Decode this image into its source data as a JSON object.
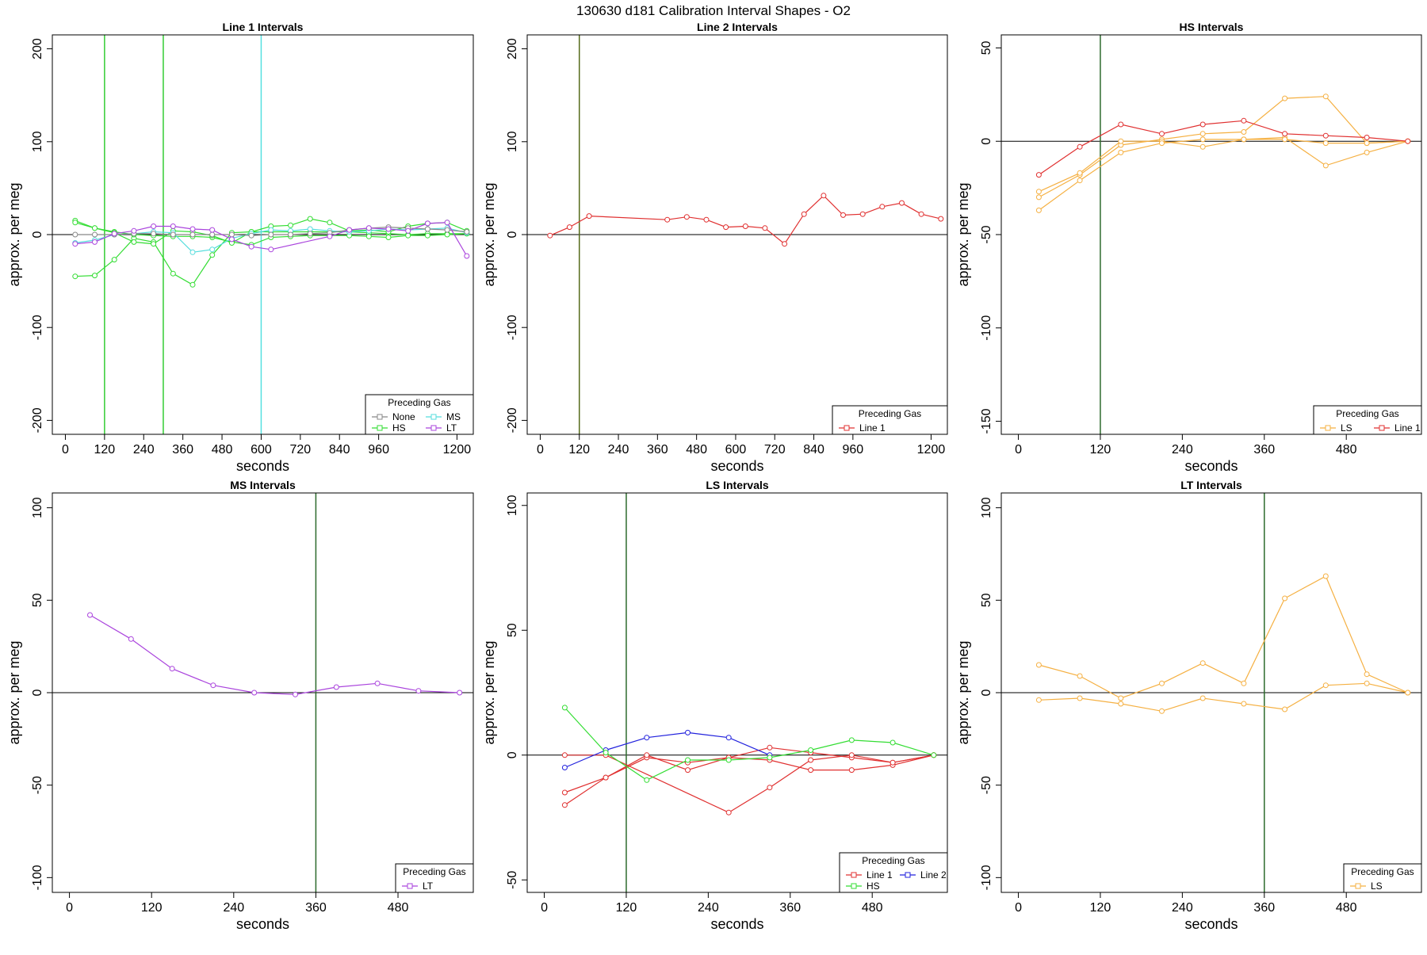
{
  "main_title": "130630   d181   Calibration Interval Shapes - O2",
  "legend_title": "Preceding Gas",
  "colors": {
    "None": "#888888",
    "HS": "#33dd33",
    "MS": "#55dddd",
    "LT": "#aa44dd",
    "Line 1": "#e03030",
    "Line 2": "#2222dd",
    "LS": "#f5b042",
    "vline_green": "#33cc33",
    "vline_dark": "#2d6a2d",
    "vline_cyan": "#55e0e0",
    "vline_olive": "#556b1a"
  },
  "chart_data": [
    {
      "type": "line",
      "title": "Line 1 Intervals",
      "xlabel": "seconds",
      "ylabel": "approx. per meg",
      "xlim": [
        -40,
        1250
      ],
      "ylim": [
        -215,
        215
      ],
      "xticks": [
        0,
        120,
        240,
        360,
        480,
        600,
        720,
        840,
        960,
        1200
      ],
      "yticks": [
        -200,
        -100,
        0,
        100,
        200
      ],
      "vlines": [
        {
          "x": 120,
          "color": "vline_green"
        },
        {
          "x": 300,
          "color": "vline_green"
        },
        {
          "x": 600,
          "color": "vline_cyan"
        }
      ],
      "legend": [
        "None",
        "MS",
        "HS",
        "LT"
      ],
      "legend_cols": 2,
      "series": [
        {
          "name": "HS",
          "x": [
            30,
            90,
            150,
            210,
            270,
            330,
            390,
            450,
            510,
            570,
            630,
            690,
            750,
            810,
            870,
            930,
            990,
            1050,
            1110,
            1170,
            1230
          ],
          "y": [
            -45,
            -44,
            -27,
            -4,
            -8,
            -42,
            -54,
            -22,
            2,
            3,
            3,
            3,
            3,
            3,
            3,
            2,
            1,
            0,
            1,
            1,
            1
          ]
        },
        {
          "name": "HS",
          "x": [
            30,
            90,
            150,
            210,
            270,
            330,
            390,
            450,
            510,
            570,
            630,
            690,
            750,
            810,
            870,
            930,
            990,
            1050,
            1110,
            1170,
            1230
          ],
          "y": [
            15,
            7,
            3,
            0,
            -1,
            -2,
            -2,
            -3,
            -8,
            -11,
            -3,
            -2,
            -1,
            -1,
            -1,
            -2,
            -3,
            -1,
            -1,
            0,
            1
          ]
        },
        {
          "name": "HS",
          "x": [
            30,
            90,
            150,
            210,
            270,
            330,
            390,
            450,
            510,
            570,
            630,
            690,
            750,
            810,
            870,
            930,
            990,
            1050,
            1110,
            1170,
            1230
          ],
          "y": [
            13,
            7,
            2,
            -8,
            -10,
            4,
            3,
            -1,
            -9,
            3,
            9,
            10,
            17,
            13,
            4,
            5,
            3,
            9,
            12,
            13,
            4
          ]
        },
        {
          "name": "MS",
          "x": [
            30,
            90,
            150,
            210,
            270,
            330,
            390,
            450,
            510,
            570,
            630,
            690,
            750,
            810,
            870,
            930,
            990,
            1050,
            1110,
            1170,
            1230
          ],
          "y": [
            -9,
            -6,
            0,
            1,
            3,
            2,
            -19,
            -16,
            -4,
            1,
            5,
            4,
            6,
            4,
            3,
            4,
            6,
            5,
            6,
            7,
            2
          ]
        },
        {
          "name": "None",
          "x": [
            30,
            90,
            150,
            210,
            270,
            330,
            390,
            450,
            510,
            570,
            630,
            690,
            750,
            810,
            870,
            930,
            990,
            1050,
            1110,
            1170,
            1230
          ],
          "y": [
            0,
            0,
            0,
            1,
            1,
            0,
            0,
            0,
            0,
            -1,
            0,
            0,
            1,
            2,
            5,
            7,
            8,
            7,
            6,
            5,
            3
          ]
        },
        {
          "name": "LT",
          "x": [
            30,
            90,
            150,
            210,
            270,
            330,
            390,
            450,
            510,
            570,
            630,
            810,
            870,
            930,
            990,
            1050,
            1110,
            1170,
            1230
          ],
          "y": [
            -10,
            -8,
            1,
            4,
            9,
            9,
            6,
            5,
            -5,
            -13,
            -16,
            -2,
            5,
            7,
            6,
            4,
            12,
            13,
            -23
          ]
        }
      ]
    },
    {
      "type": "line",
      "title": "Line 2 Intervals",
      "xlabel": "seconds",
      "ylabel": "approx. per meg",
      "xlim": [
        -40,
        1250
      ],
      "ylim": [
        -215,
        215
      ],
      "xticks": [
        0,
        120,
        240,
        360,
        480,
        600,
        720,
        840,
        960,
        1200
      ],
      "yticks": [
        -200,
        -100,
        0,
        100,
        200
      ],
      "vlines": [
        {
          "x": 120,
          "color": "vline_olive"
        }
      ],
      "legend": [
        "Line 1"
      ],
      "legend_cols": 1,
      "series": [
        {
          "name": "Line 1",
          "x": [
            30,
            90,
            150,
            390,
            450,
            510,
            570,
            630,
            690,
            750,
            810,
            870,
            930,
            990,
            1050,
            1110,
            1170,
            1230
          ],
          "y": [
            -1,
            8,
            20,
            16,
            19,
            16,
            8,
            9,
            7,
            -10,
            22,
            42,
            21,
            22,
            30,
            34,
            22,
            17
          ]
        }
      ]
    },
    {
      "type": "line",
      "title": "HS Intervals",
      "xlabel": "seconds",
      "ylabel": "approx. per meg",
      "xlim": [
        -25,
        590
      ],
      "ylim": [
        -157,
        57
      ],
      "xticks": [
        0,
        120,
        240,
        360,
        480
      ],
      "yticks": [
        -150,
        -100,
        -50,
        0,
        50
      ],
      "vlines": [
        {
          "x": 120,
          "color": "vline_dark"
        }
      ],
      "legend": [
        "LS",
        "Line 1"
      ],
      "legend_cols": 2,
      "series": [
        {
          "name": "LS",
          "x": [
            30,
            90,
            150,
            210,
            270,
            330,
            390,
            450,
            510,
            570
          ],
          "y": [
            -30,
            -18,
            -2,
            1,
            4,
            5,
            23,
            24,
            -1,
            0
          ]
        },
        {
          "name": "LS",
          "x": [
            30,
            90,
            150,
            210,
            270,
            330,
            390,
            450,
            510,
            570
          ],
          "y": [
            -27,
            -17,
            0,
            0,
            -3,
            1,
            2,
            -13,
            -6,
            0
          ]
        },
        {
          "name": "LS",
          "x": [
            30,
            90,
            150,
            210,
            270,
            330,
            390,
            450,
            510,
            570
          ],
          "y": [
            -37,
            -21,
            -6,
            -1,
            1,
            1,
            1,
            -1,
            -1,
            0
          ]
        },
        {
          "name": "Line 1",
          "x": [
            30,
            90,
            150,
            210,
            270,
            330,
            390,
            450,
            510,
            570
          ],
          "y": [
            -18,
            -3,
            9,
            4,
            9,
            11,
            4,
            3,
            2,
            0
          ]
        }
      ]
    },
    {
      "type": "line",
      "title": "MS Intervals",
      "xlabel": "seconds",
      "ylabel": "approx. per meg",
      "xlim": [
        -25,
        590
      ],
      "ylim": [
        -108,
        108
      ],
      "xticks": [
        0,
        120,
        240,
        360,
        480
      ],
      "yticks": [
        -100,
        -50,
        0,
        50,
        100
      ],
      "vlines": [
        {
          "x": 360,
          "color": "vline_dark"
        }
      ],
      "legend": [
        "LT"
      ],
      "legend_cols": 1,
      "series": [
        {
          "name": "LT",
          "x": [
            30,
            90,
            150,
            210,
            270,
            330,
            390,
            450,
            510,
            570
          ],
          "y": [
            42,
            29,
            13,
            4,
            0,
            -1,
            3,
            5,
            1,
            0
          ]
        }
      ]
    },
    {
      "type": "line",
      "title": "LS Intervals",
      "xlabel": "seconds",
      "ylabel": "approx. per meg",
      "xlim": [
        -25,
        590
      ],
      "ylim": [
        -55,
        105
      ],
      "xticks": [
        0,
        120,
        240,
        360,
        480
      ],
      "yticks": [
        -50,
        0,
        50,
        100
      ],
      "vlines": [
        {
          "x": 120,
          "color": "vline_dark"
        }
      ],
      "legend": [
        "Line 1",
        "Line 2",
        "HS"
      ],
      "legend_cols": 2,
      "series": [
        {
          "name": "Line 1",
          "x": [
            30,
            90,
            150,
            210,
            270,
            330,
            390,
            450,
            510,
            570
          ],
          "y": [
            -15,
            -9,
            -1,
            -3,
            -1,
            3,
            1,
            -1,
            -3,
            0
          ]
        },
        {
          "name": "Line 1",
          "x": [
            30,
            90,
            150,
            210,
            270,
            330,
            390,
            450,
            510,
            570
          ],
          "y": [
            -20,
            -9,
            0,
            -6,
            -1,
            -2,
            -6,
            -6,
            -4,
            0
          ]
        },
        {
          "name": "Line 1",
          "x": [
            30,
            90,
            270,
            330,
            390,
            450,
            510,
            570
          ],
          "y": [
            0,
            0,
            -23,
            -13,
            -2,
            0,
            -3,
            0
          ]
        },
        {
          "name": "Line 2",
          "x": [
            30,
            90,
            150,
            210,
            270,
            330
          ],
          "y": [
            -5,
            2,
            7,
            9,
            7,
            0
          ]
        },
        {
          "name": "HS",
          "x": [
            30,
            90,
            150,
            210,
            270,
            330,
            390,
            450,
            510,
            570
          ],
          "y": [
            19,
            1,
            -10,
            -2,
            -2,
            -1,
            2,
            6,
            5,
            0
          ]
        }
      ]
    },
    {
      "type": "line",
      "title": "LT Intervals",
      "xlabel": "seconds",
      "ylabel": "approx. per meg",
      "xlim": [
        -25,
        590
      ],
      "ylim": [
        -108,
        108
      ],
      "xticks": [
        0,
        120,
        240,
        360,
        480
      ],
      "yticks": [
        -100,
        -50,
        0,
        50,
        100
      ],
      "vlines": [
        {
          "x": 360,
          "color": "vline_dark"
        }
      ],
      "legend": [
        "LS"
      ],
      "legend_cols": 1,
      "series": [
        {
          "name": "LS",
          "x": [
            30,
            90,
            150,
            210,
            270,
            330,
            390,
            450,
            510,
            570
          ],
          "y": [
            15,
            9,
            -3,
            5,
            16,
            5,
            51,
            63,
            10,
            0
          ]
        },
        {
          "name": "LS",
          "x": [
            30,
            90,
            150,
            210,
            270,
            330,
            390,
            450,
            510,
            570
          ],
          "y": [
            -4,
            -3,
            -6,
            -10,
            -3,
            -6,
            -9,
            4,
            5,
            0
          ]
        }
      ]
    }
  ]
}
